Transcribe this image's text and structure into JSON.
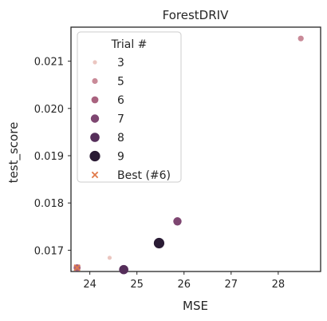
{
  "chart_data": {
    "type": "scatter",
    "title": "ForestDRIV",
    "xlabel": "MSE",
    "ylabel": "test_score",
    "xlim": [
      23.6,
      28.9
    ],
    "ylim": [
      0.01655,
      0.02172
    ],
    "xticks": [
      24,
      25,
      26,
      27,
      28
    ],
    "yticks": [
      0.017,
      0.018,
      0.019,
      0.02,
      0.021
    ],
    "xtick_labels": [
      "24",
      "25",
      "26",
      "27",
      "28"
    ],
    "ytick_labels": [
      "0.017",
      "0.018",
      "0.019",
      "0.020",
      "0.021"
    ],
    "grid": false,
    "legend": {
      "title": "Trial #",
      "placement": "top-left",
      "entries": [
        {
          "label": "3",
          "color": "#ebc6c0",
          "size": "xs"
        },
        {
          "label": "5",
          "color": "#c98a98",
          "size": "s"
        },
        {
          "label": "6",
          "color": "#a9627f",
          "size": "m"
        },
        {
          "label": "7",
          "color": "#7e4671",
          "size": "l"
        },
        {
          "label": "8",
          "color": "#552e5a",
          "size": "xl"
        },
        {
          "label": "9",
          "color": "#2a1b34",
          "size": "xxl"
        },
        {
          "label": "Best (#6)",
          "color": "#e07a4a",
          "marker": "x"
        }
      ]
    },
    "points": [
      {
        "trial": "3",
        "x": 24.42,
        "y": 0.01684,
        "color": "#ebc6c0",
        "size": "xs"
      },
      {
        "trial": "5",
        "x": 28.48,
        "y": 0.02148,
        "color": "#c98a98",
        "size": "s"
      },
      {
        "trial": "6",
        "x": 23.73,
        "y": 0.01663,
        "color": "#a9627f",
        "size": "m"
      },
      {
        "trial": "7",
        "x": 25.86,
        "y": 0.01761,
        "color": "#7e4671",
        "size": "l"
      },
      {
        "trial": "8",
        "x": 24.72,
        "y": 0.01659,
        "color": "#552e5a",
        "size": "xl"
      },
      {
        "trial": "9",
        "x": 25.47,
        "y": 0.01715,
        "color": "#2a1b34",
        "size": "xxl"
      }
    ],
    "best": {
      "label": "Best (#6)",
      "x": 23.73,
      "y": 0.01663,
      "color": "#e07a4a",
      "marker": "x"
    }
  }
}
